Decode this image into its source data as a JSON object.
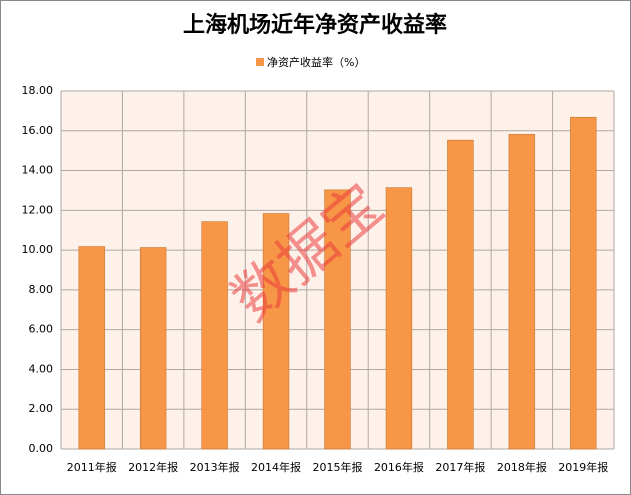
{
  "chart_data": {
    "type": "bar",
    "title": "上海机场近年净资产收益率",
    "categories": [
      "2011年报",
      "2012年报",
      "2013年报",
      "2014年报",
      "2015年报",
      "2016年报",
      "2017年报",
      "2018年报",
      "2019年报"
    ],
    "series": [
      {
        "name": "净资产收益率（%）",
        "color": "#f79646",
        "values": [
          10.18,
          10.13,
          11.43,
          11.84,
          13.03,
          13.14,
          15.53,
          15.82,
          16.68
        ]
      }
    ],
    "ylim": [
      0,
      18
    ],
    "yticks": [
      {
        "value": 0,
        "label": "0.00"
      },
      {
        "value": 2,
        "label": "2.00"
      },
      {
        "value": 4,
        "label": "4.00"
      },
      {
        "value": 6,
        "label": "6.00"
      },
      {
        "value": 8,
        "label": "8.00"
      },
      {
        "value": 10,
        "label": "10.00"
      },
      {
        "value": 12,
        "label": "12.00"
      },
      {
        "value": 14,
        "label": "14.00"
      },
      {
        "value": 16,
        "label": "16.00"
      },
      {
        "value": 18,
        "label": "18.00"
      }
    ],
    "grid": true,
    "legend": "top",
    "watermark": "数据宝"
  }
}
